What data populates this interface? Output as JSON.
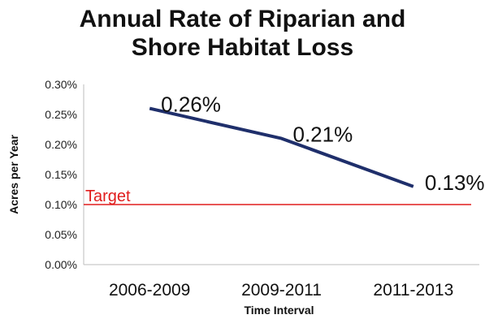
{
  "chart_data": {
    "type": "line",
    "title_line1": "Annual Rate of Riparian and",
    "title_line2": "Shore Habitat Loss",
    "xlabel": "Time Interval",
    "ylabel": "Acres per Year",
    "categories": [
      "2006-2009",
      "2009-2011",
      "2011-2013"
    ],
    "values": [
      0.26,
      0.21,
      0.13
    ],
    "data_labels": [
      "0.26%",
      "0.21%",
      "0.13%"
    ],
    "y_ticks": [
      0.0,
      0.05,
      0.1,
      0.15,
      0.2,
      0.25,
      0.3
    ],
    "y_tick_labels": [
      "0.00%",
      "0.05%",
      "0.10%",
      "0.15%",
      "0.20%",
      "0.25%",
      "0.30%"
    ],
    "ylim": [
      0,
      0.3
    ],
    "target": {
      "label": "Target",
      "value": 0.1,
      "color": "#e11d1d"
    },
    "line_color": "#1f2f6b",
    "grid": false
  }
}
